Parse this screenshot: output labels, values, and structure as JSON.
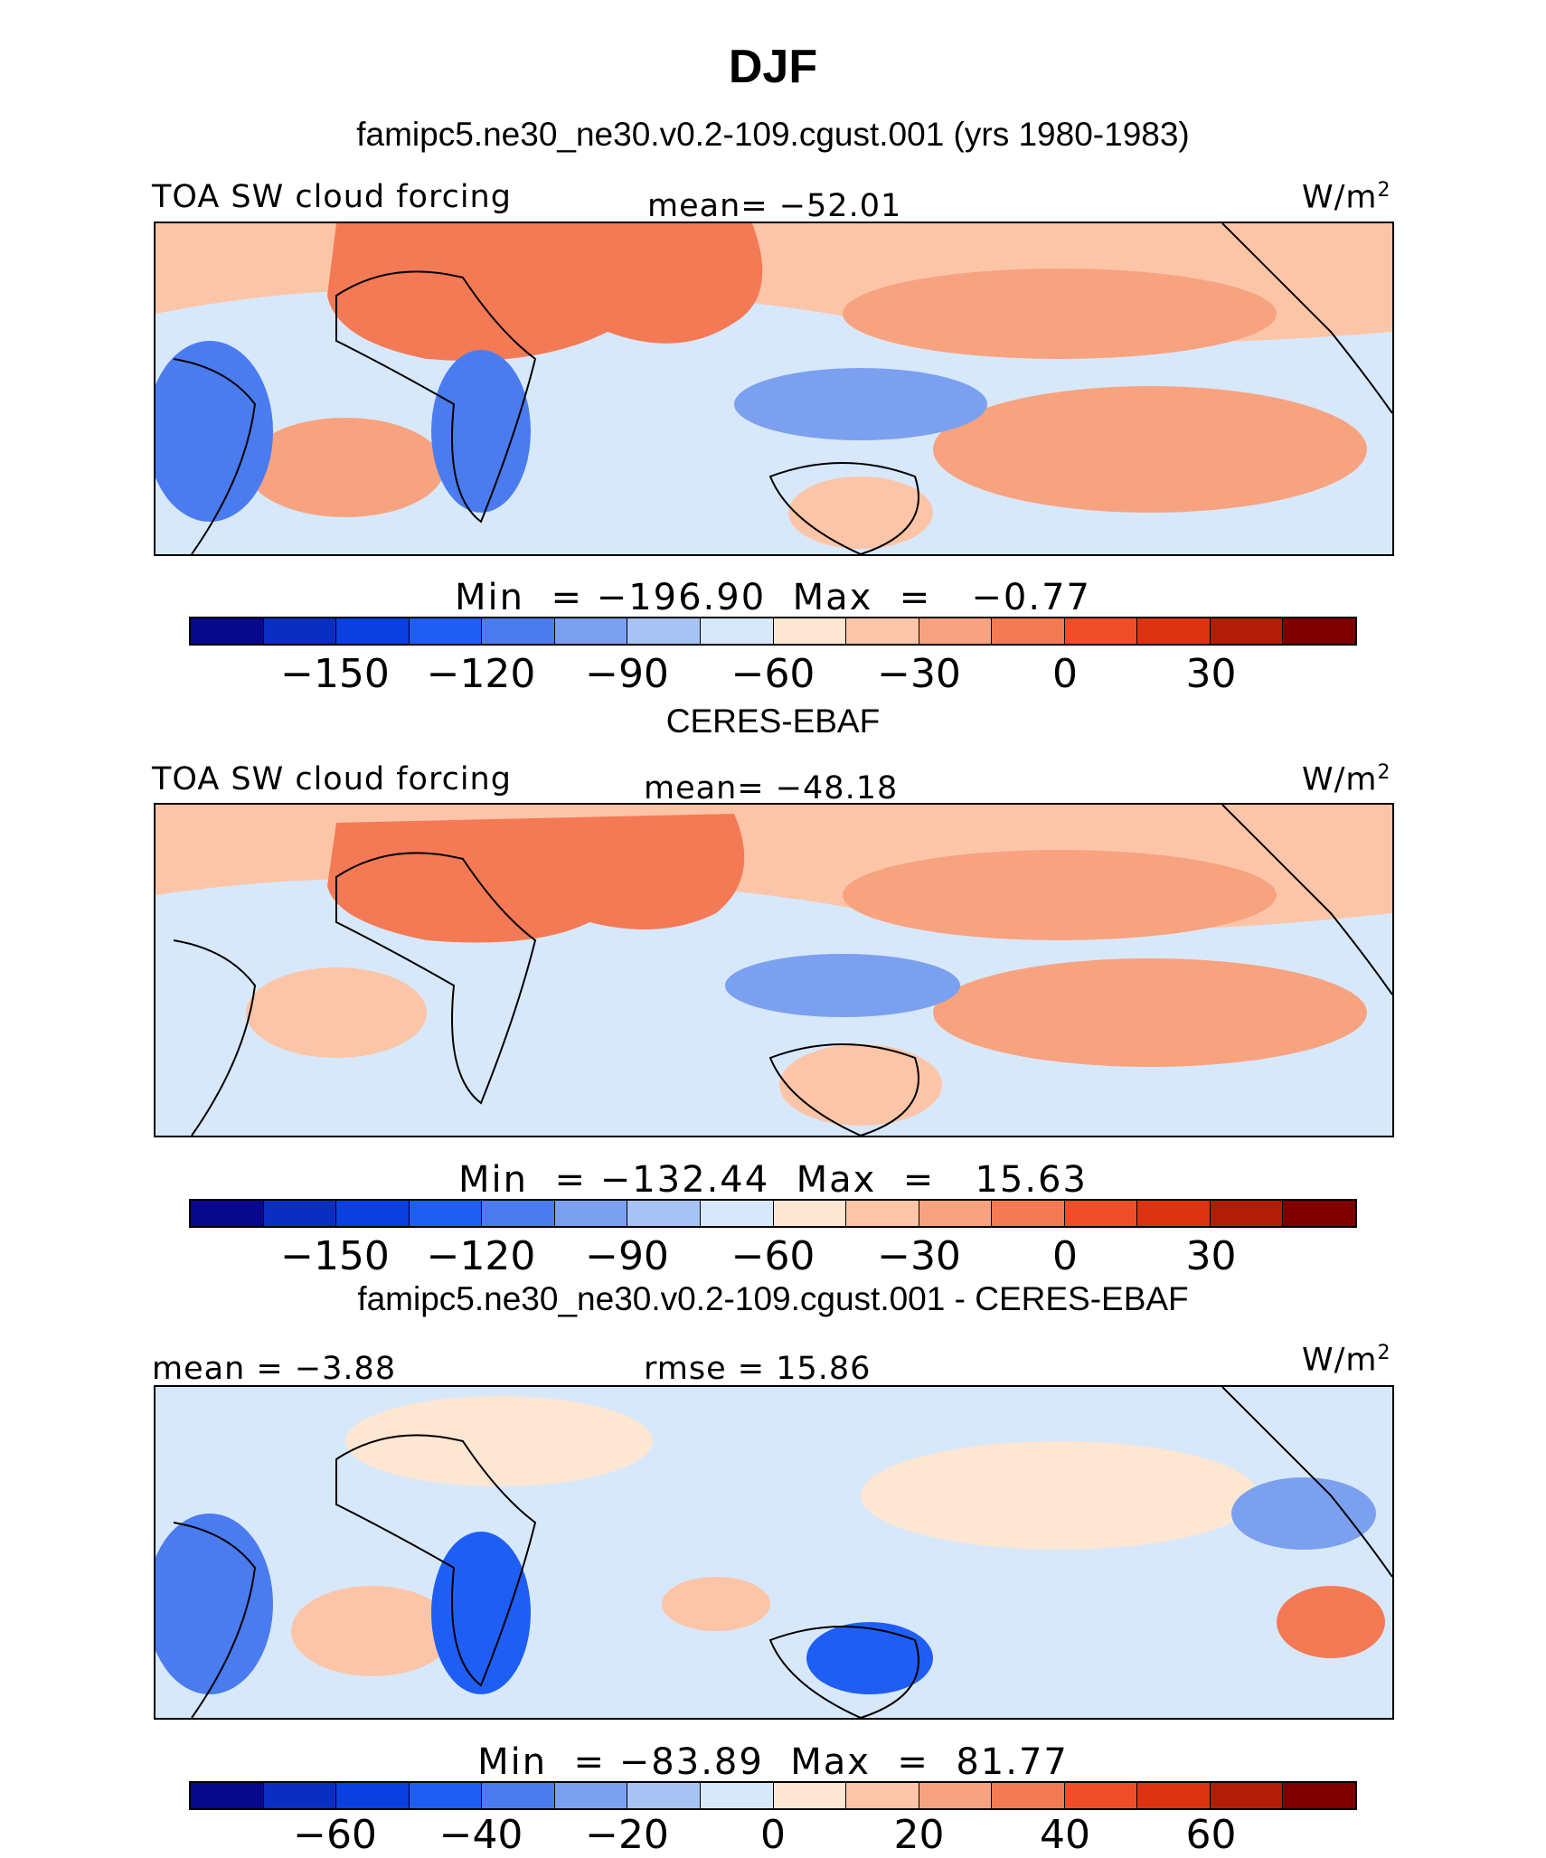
{
  "figure": {
    "title": "DJF",
    "colors": [
      "#08088a",
      "#0a2fc0",
      "#0c3fe0",
      "#1f5ef5",
      "#4a7cf0",
      "#7ca0f0",
      "#a8c2f4",
      "#d8e8fb",
      "#fde6d2",
      "#fcc5a7",
      "#f8a37f",
      "#f47a55",
      "#f04e2a",
      "#dc3410",
      "#b11e08",
      "#7f0000"
    ]
  },
  "panels": [
    {
      "subtitle": "famipc5.ne30_ne30.v0.2-109.cgust.001 (yrs 1980-1983)",
      "label_left": "TOA SW cloud forcing",
      "label_center": "mean=  −52.01",
      "units": "W/m",
      "units_sup": "2",
      "min_label": "Min",
      "max_label": "Max",
      "eq": "=",
      "min_value": "−196.90",
      "max_value": "−0.77",
      "ticks": [
        "−150",
        "−120",
        "−90",
        "−60",
        "−30",
        "0",
        "30"
      ]
    },
    {
      "subtitle": "CERES-EBAF",
      "label_left": "TOA SW cloud forcing",
      "label_center": "mean=  −48.18",
      "units": "W/m",
      "units_sup": "2",
      "min_label": "Min",
      "max_label": "Max",
      "eq": "=",
      "min_value": "−132.44",
      "max_value": "15.63",
      "ticks": [
        "−150",
        "−120",
        "−90",
        "−60",
        "−30",
        "0",
        "30"
      ]
    },
    {
      "subtitle": "famipc5.ne30_ne30.v0.2-109.cgust.001 - CERES-EBAF",
      "label_left": "mean =   −3.88",
      "label_center": "rmse =   15.86",
      "units": "W/m",
      "units_sup": "2",
      "min_label": "Min",
      "max_label": "Max",
      "eq": "=",
      "min_value": "−83.89",
      "max_value": "81.77",
      "ticks": [
        "−60",
        "−40",
        "−20",
        "0",
        "20",
        "40",
        "60"
      ]
    }
  ],
  "chart_data": [
    {
      "type": "heatmap",
      "title": "famipc5.ne30_ne30.v0.2-109.cgust.001 (yrs 1980-1983)",
      "variable": "TOA SW cloud forcing",
      "season": "DJF",
      "units": "W/m2",
      "mean": -52.01,
      "min": -196.9,
      "max": -0.77,
      "colorbar_ticks": [
        -150,
        -120,
        -90,
        -60,
        -30,
        0,
        30
      ]
    },
    {
      "type": "heatmap",
      "title": "CERES-EBAF",
      "variable": "TOA SW cloud forcing",
      "season": "DJF",
      "units": "W/m2",
      "mean": -48.18,
      "min": -132.44,
      "max": 15.63,
      "colorbar_ticks": [
        -150,
        -120,
        -90,
        -60,
        -30,
        0,
        30
      ]
    },
    {
      "type": "heatmap",
      "title": "famipc5.ne30_ne30.v0.2-109.cgust.001 - CERES-EBAF",
      "variable": "difference",
      "season": "DJF",
      "units": "W/m2",
      "mean": -3.88,
      "rmse": 15.86,
      "min": -83.89,
      "max": 81.77,
      "colorbar_ticks": [
        -60,
        -40,
        -20,
        0,
        20,
        40,
        60
      ]
    }
  ]
}
